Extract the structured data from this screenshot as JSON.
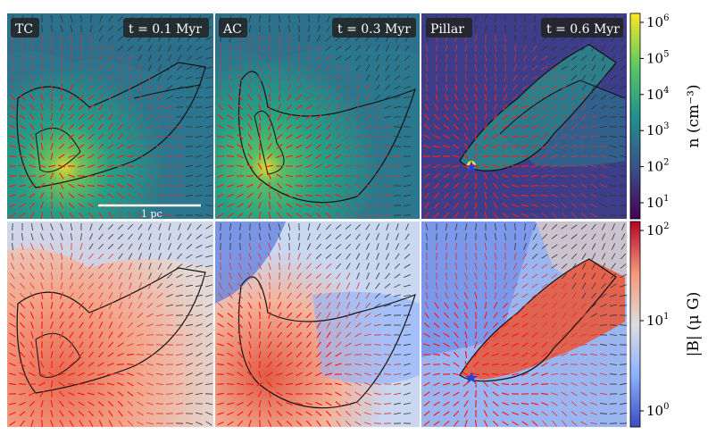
{
  "panels": [
    {
      "id": "tc",
      "label": "TC",
      "time": "t = 0.1 Myr"
    },
    {
      "id": "ac",
      "label": "AC",
      "time": "t = 0.3 Myr"
    },
    {
      "id": "pillar",
      "label": "Pillar",
      "time": "t = 0.6 Myr"
    }
  ],
  "scale_bar": {
    "label": "1 pc"
  },
  "colorbar_density": {
    "label": "n (cm⁻³)",
    "ticks": [
      {
        "base": "10",
        "exp": "1"
      },
      {
        "base": "10",
        "exp": "2"
      },
      {
        "base": "10",
        "exp": "3"
      },
      {
        "base": "10",
        "exp": "4"
      },
      {
        "base": "10",
        "exp": "5"
      },
      {
        "base": "10",
        "exp": "6"
      }
    ],
    "colors": [
      "#440154",
      "#3b528b",
      "#21918c",
      "#5ec962",
      "#fde725"
    ]
  },
  "colorbar_field": {
    "label": "|B| (μ G)",
    "ticks": [
      {
        "base": "10",
        "exp": "0"
      },
      {
        "base": "10",
        "exp": "1"
      },
      {
        "base": "10",
        "exp": "2"
      }
    ],
    "colors": [
      "#3b4cc0",
      "#8db0fe",
      "#dddddd",
      "#f4987a",
      "#b40426"
    ]
  }
}
